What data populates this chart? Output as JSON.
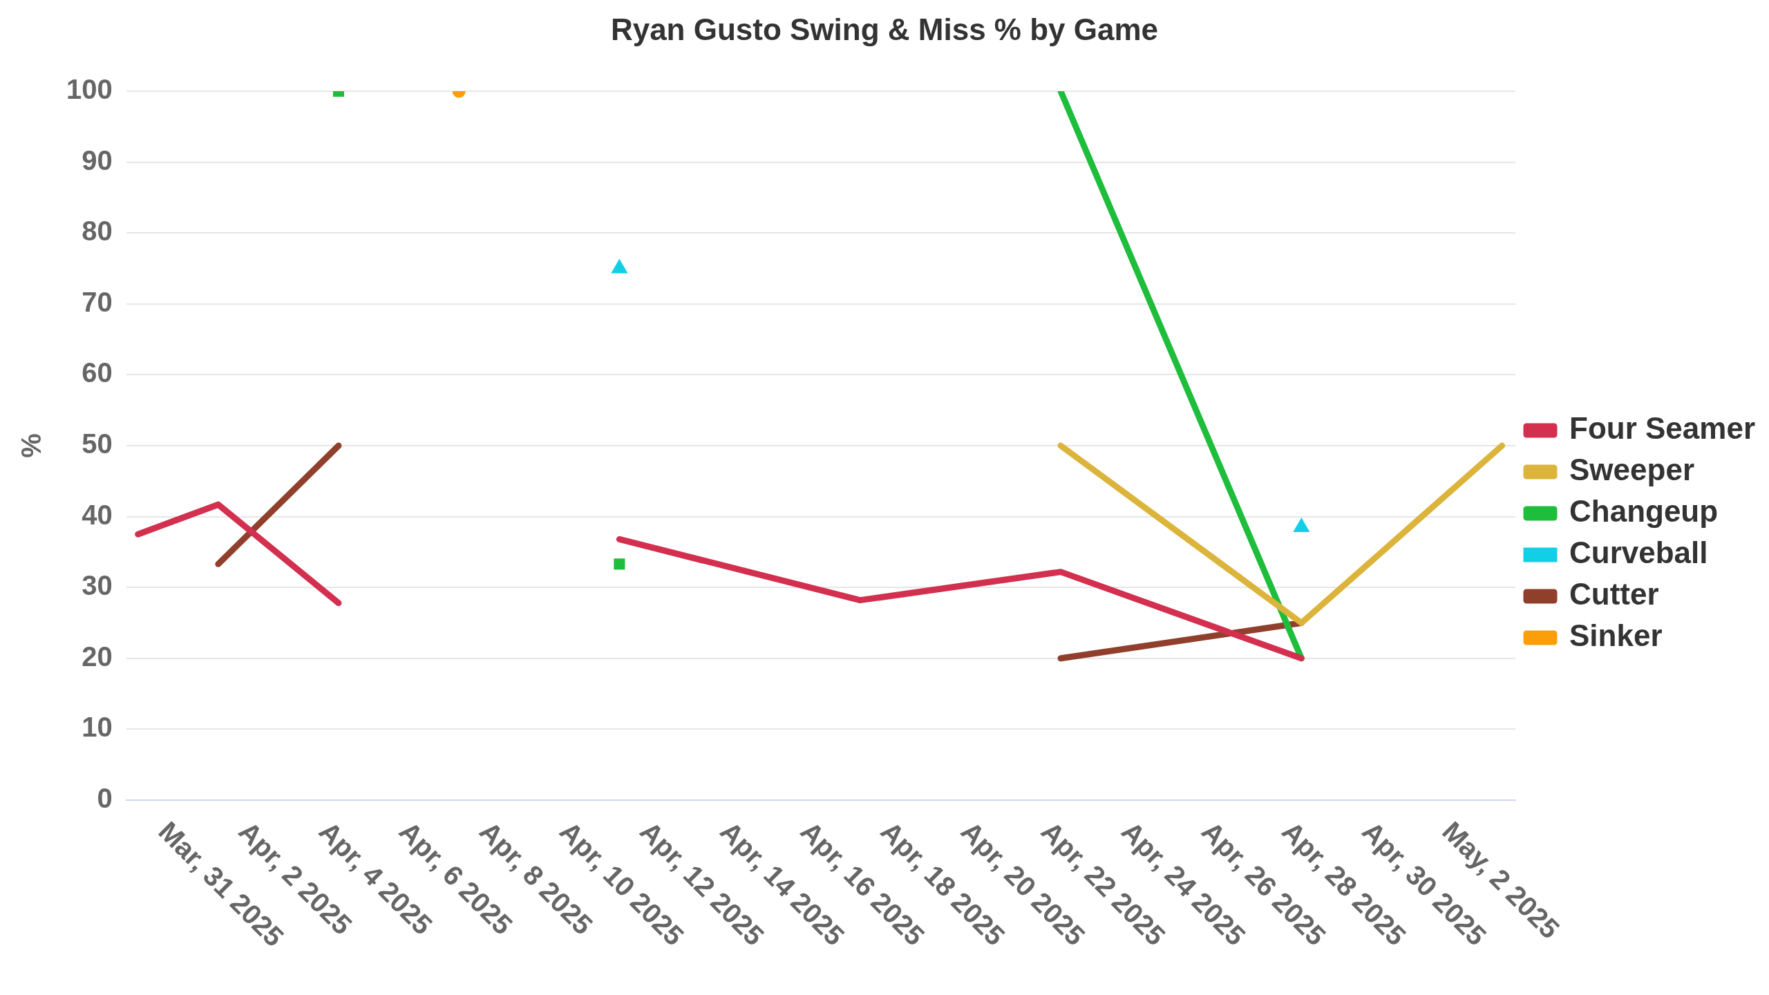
{
  "chart_data": {
    "type": "line",
    "title": "Ryan Gusto Swing & Miss % by Game",
    "ylabel": "%",
    "x": [
      "2025-03-30T07:00",
      "2025-04-01T07:00",
      "2025-04-04T07:00",
      "2025-04-07T07:00",
      "2025-04-11T07:00",
      "2025-04-17T07:00",
      "2025-04-22T07:00",
      "2025-04-28T07:00",
      "2025-05-03T07:00"
    ],
    "series": [
      {
        "name": "Four Seamer",
        "color": "#d32f4f",
        "values": [
          37.5,
          41.7,
          27.8,
          null,
          36.8,
          28.2,
          32.2,
          20,
          null
        ]
      },
      {
        "name": "Sweeper",
        "color": "#dcb43b",
        "values": [
          null,
          null,
          null,
          null,
          null,
          null,
          50,
          25,
          50
        ]
      },
      {
        "name": "Changeup",
        "color": "#1fbd3c",
        "marker": "square",
        "values": [
          null,
          null,
          100,
          null,
          33.3,
          null,
          100,
          20,
          null
        ]
      },
      {
        "name": "Curveball",
        "type": "scatter",
        "color": "#11d0e6",
        "marker": "triangle",
        "values": [
          null,
          null,
          null,
          null,
          75,
          null,
          null,
          38.5,
          null
        ]
      },
      {
        "name": "Cutter",
        "color": "#8f3f2b",
        "values": [
          null,
          33.3,
          50,
          null,
          null,
          null,
          20,
          25,
          null
        ]
      },
      {
        "name": "Sinker",
        "color": "#fb9e0a",
        "marker": "circle",
        "values": [
          null,
          null,
          null,
          100,
          null,
          null,
          null,
          null,
          null
        ]
      }
    ],
    "xlim": [
      "2025-03-30",
      "2025-05-03T15:00"
    ],
    "xticks": [
      {
        "value": "2025-03-31",
        "label": "Mar, 31 2025"
      },
      {
        "value": "2025-04-02",
        "label": "Apr, 2 2025"
      },
      {
        "value": "2025-04-04",
        "label": "Apr, 4 2025"
      },
      {
        "value": "2025-04-06",
        "label": "Apr, 6 2025"
      },
      {
        "value": "2025-04-08",
        "label": "Apr, 8 2025"
      },
      {
        "value": "2025-04-10",
        "label": "Apr, 10 2025"
      },
      {
        "value": "2025-04-12",
        "label": "Apr, 12 2025"
      },
      {
        "value": "2025-04-14",
        "label": "Apr, 14 2025"
      },
      {
        "value": "2025-04-16",
        "label": "Apr, 16 2025"
      },
      {
        "value": "2025-04-18",
        "label": "Apr, 18 2025"
      },
      {
        "value": "2025-04-20",
        "label": "Apr, 20 2025"
      },
      {
        "value": "2025-04-22",
        "label": "Apr, 22 2025"
      },
      {
        "value": "2025-04-24",
        "label": "Apr, 24 2025"
      },
      {
        "value": "2025-04-26",
        "label": "Apr, 26 2025"
      },
      {
        "value": "2025-04-28",
        "label": "Apr, 28 2025"
      },
      {
        "value": "2025-04-30",
        "label": "Apr, 30 2025"
      },
      {
        "value": "2025-05-02",
        "label": "May, 2 2025"
      }
    ],
    "ylim": [
      0,
      100
    ],
    "yticks": [
      0,
      10,
      20,
      30,
      40,
      50,
      60,
      70,
      80,
      90,
      100
    ],
    "grid": "y",
    "legend": "right",
    "line_style": "solid"
  }
}
